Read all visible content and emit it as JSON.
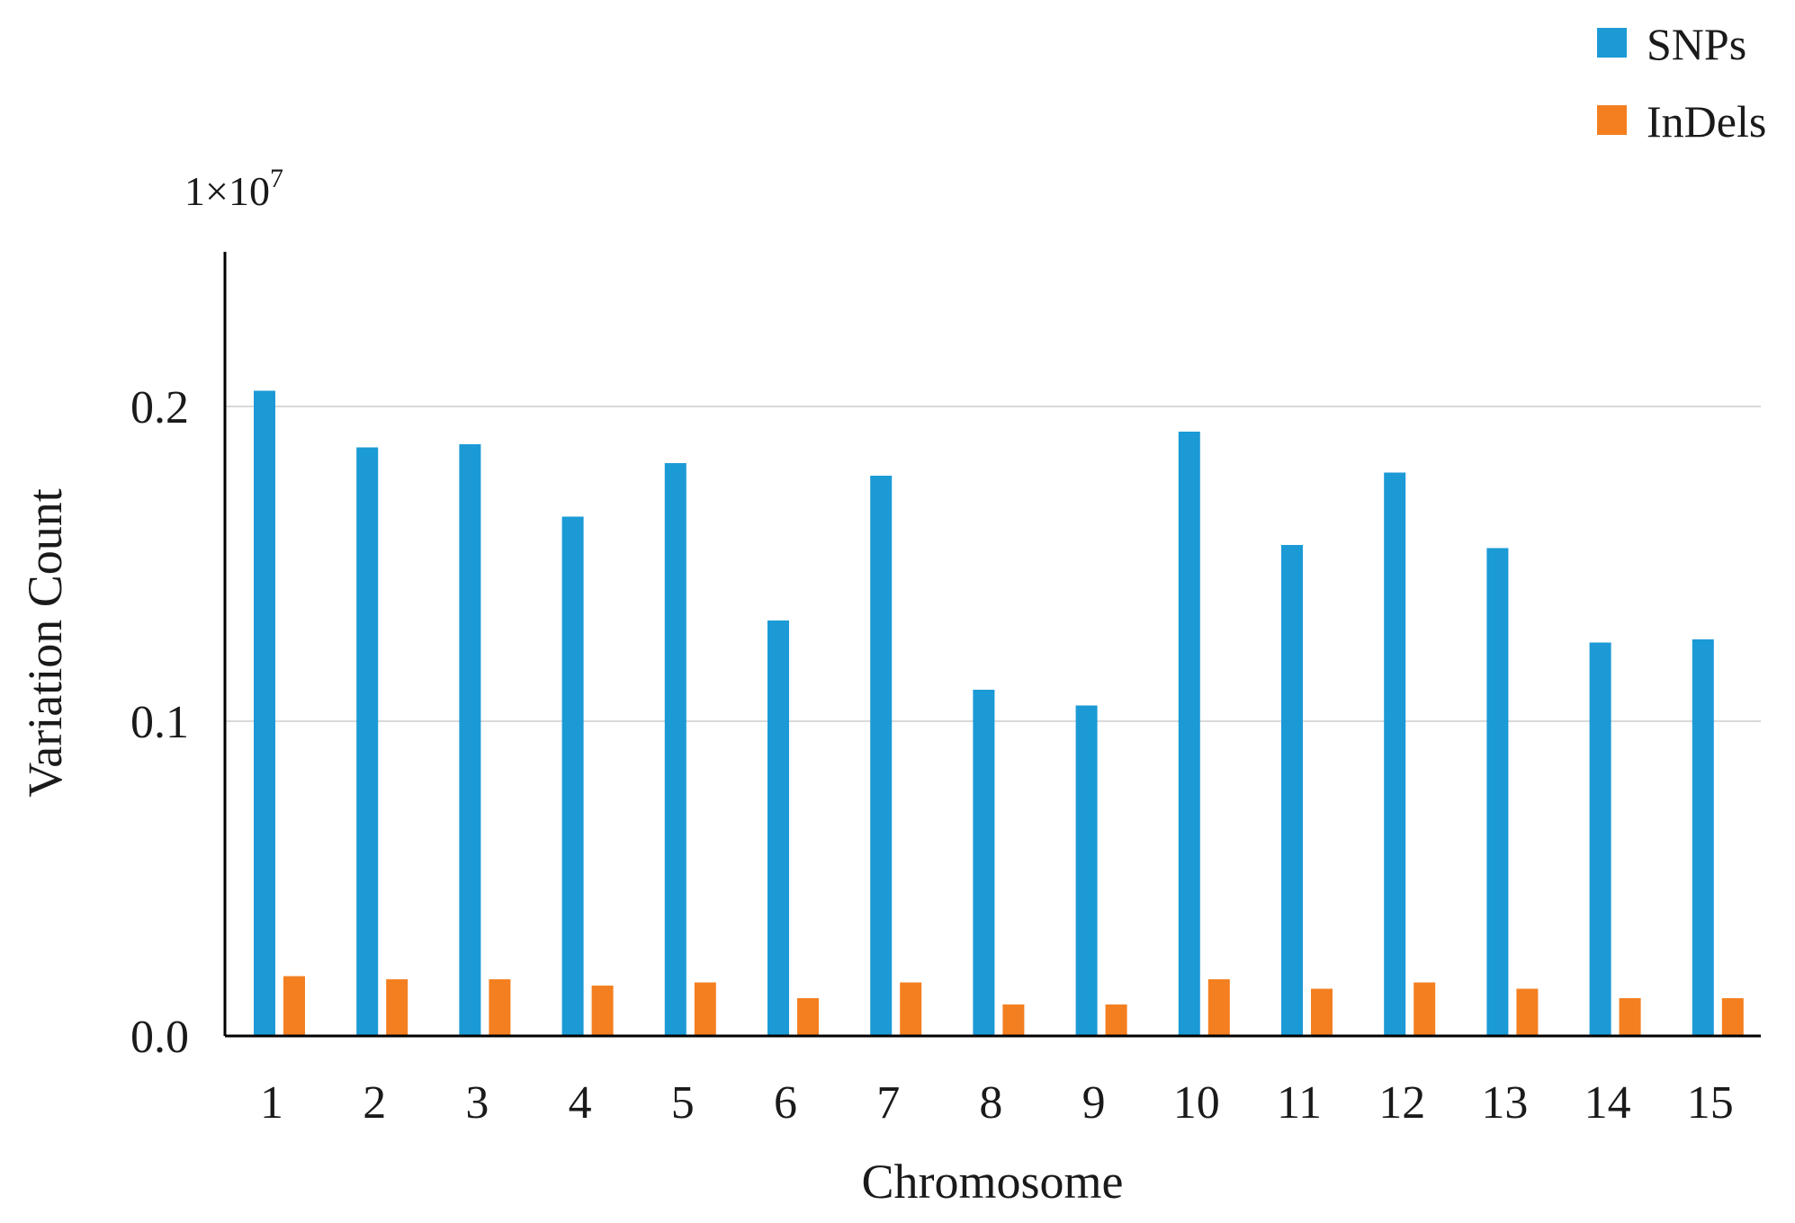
{
  "chart_data": {
    "type": "bar",
    "categories": [
      "1",
      "2",
      "3",
      "4",
      "5",
      "6",
      "7",
      "8",
      "9",
      "10",
      "11",
      "12",
      "13",
      "14",
      "15"
    ],
    "series": [
      {
        "name": "SNPs",
        "color": "#1b9ad6",
        "values": [
          0.205,
          0.187,
          0.188,
          0.165,
          0.182,
          0.132,
          0.178,
          0.11,
          0.105,
          0.192,
          0.156,
          0.179,
          0.155,
          0.125,
          0.126
        ]
      },
      {
        "name": "InDels",
        "color": "#f47f20",
        "values": [
          0.019,
          0.018,
          0.018,
          0.016,
          0.017,
          0.012,
          0.017,
          0.01,
          0.01,
          0.018,
          0.015,
          0.017,
          0.015,
          0.012,
          0.012
        ]
      }
    ],
    "xlabel": "Chromosome",
    "ylabel": "Variation Count",
    "ylim": [
      0,
      0.25
    ],
    "yticks": [
      "0.0",
      "0.1",
      "0.2"
    ],
    "ytick_values": [
      0,
      0.1,
      0.2
    ],
    "scale_factor": "1×10",
    "scale_exponent": "7",
    "grid": true,
    "legend_position": "top-right"
  }
}
